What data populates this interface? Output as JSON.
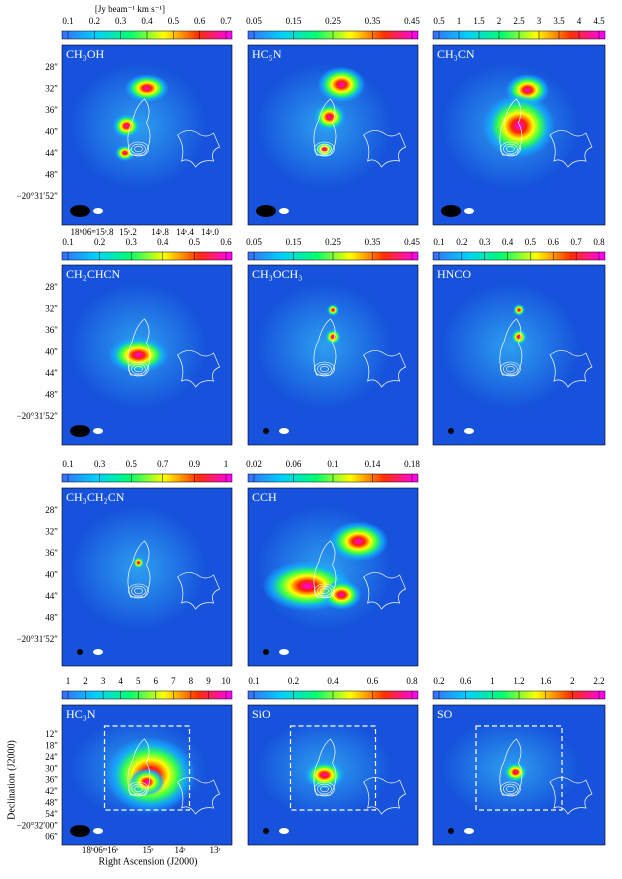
{
  "figure": {
    "unit": "[Jy beam⁻¹ km s⁻¹]",
    "dec_ticks_top": [
      "28″",
      "32″",
      "36″",
      "40″",
      "44″",
      "48″",
      "−20°31′52″"
    ],
    "ra_ticks_top": [
      "18ʰ06ᵐ15ˢ.8",
      "15ˢ.2",
      "14ˢ.8",
      "14ˢ.4",
      "14ˢ.0"
    ],
    "dec_ticks_bottom": [
      "12″",
      "18″",
      "24″",
      "30″",
      "36″",
      "42″",
      "48″",
      "54″",
      "−20°32′00″",
      "06″"
    ],
    "ra_ticks_bottom": [
      "18ʰ06ᵐ16ˢ",
      "15ˢ",
      "14ˢ",
      "13ˢ"
    ],
    "dec_title": "Declination (J2000)",
    "ra_title": "Right Ascension (J2000)",
    "panels": [
      {
        "label": "CH₃OH",
        "colorbar": [
          "0.1",
          "0.2",
          "0.3",
          "0.4",
          "0.5",
          "0.6",
          "0.7"
        ]
      },
      {
        "label": "HC₅N",
        "colorbar": [
          "0.05",
          "0.15",
          "0.25",
          "0.35",
          "0.45"
        ]
      },
      {
        "label": "CH₃CN",
        "colorbar": [
          "0.5",
          "1",
          "1.5",
          "2",
          "2.5",
          "3",
          "3.5",
          "4",
          "4.5"
        ]
      },
      {
        "label": "CH₂CHCN",
        "colorbar": [
          "0.1",
          "0.2",
          "0.3",
          "0.4",
          "0.5",
          "0.6"
        ]
      },
      {
        "label": "CH₃OCH₃",
        "colorbar": [
          "0.05",
          "0.15",
          "0.25",
          "0.35",
          "0.45"
        ]
      },
      {
        "label": "HNCO",
        "colorbar": [
          "0.1",
          "0.2",
          "0.3",
          "0.4",
          "0.5",
          "0.6",
          "0.7",
          "0.8"
        ]
      },
      {
        "label": "CH₃CH₂CN",
        "colorbar": [
          "0.1",
          "0.3",
          "0.5",
          "0.7",
          "0.9",
          "1"
        ]
      },
      {
        "label": "CCH",
        "colorbar": [
          "0.02",
          "0.06",
          "0.1",
          "0.14",
          "0.18"
        ]
      },
      {
        "label": "HC₃N",
        "colorbar": [
          "1",
          "2",
          "3",
          "4",
          "5",
          "6",
          "7",
          "8",
          "9",
          "10"
        ]
      },
      {
        "label": "SiO",
        "colorbar": [
          "0.1",
          "0.2",
          "0.4",
          "0.6",
          "0.8"
        ]
      },
      {
        "label": "SO",
        "colorbar": [
          "0.2",
          "0.6",
          "1",
          "1.2",
          "1.6",
          "2",
          "2.2"
        ]
      }
    ]
  }
}
